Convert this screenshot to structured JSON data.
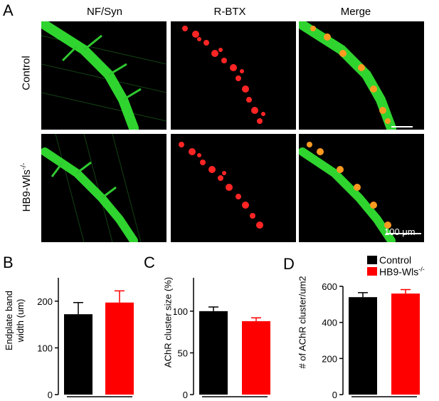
{
  "panels": {
    "a": "A",
    "b": "B",
    "c": "C",
    "d": "D"
  },
  "columns": [
    "NF/Syn",
    "R-BTX",
    "Merge"
  ],
  "rows": [
    "Control",
    "HB9-Wls"
  ],
  "row_superscript": "-/-",
  "scalebar": "100 μm",
  "legend": {
    "control": "Control",
    "hb9": "HB9-Wls",
    "hb9_sup": "-/-"
  },
  "colors": {
    "control": "#000000",
    "hb9": "#ff0000",
    "green": "#22c022",
    "red": "#ff2020"
  },
  "chart_data": [
    {
      "type": "bar",
      "panel": "B",
      "ylabel_line1": "Endplate band",
      "ylabel_line2": "width (um)",
      "categories": [
        "Control",
        "HB9-Wls-/-"
      ],
      "values": [
        172,
        197
      ],
      "errors": [
        25,
        25
      ],
      "ylim": [
        0,
        250
      ],
      "yticks": [
        "0",
        "100",
        "200"
      ],
      "ytick_values": [
        0,
        100,
        200
      ]
    },
    {
      "type": "bar",
      "panel": "C",
      "ylabel": "AChR cluster size (%)",
      "categories": [
        "Control",
        "HB9-Wls-/-"
      ],
      "values": [
        100,
        88
      ],
      "errors": [
        5,
        4
      ],
      "ylim": [
        0,
        140
      ],
      "yticks": [
        "0",
        "50",
        "100"
      ],
      "ytick_values": [
        0,
        50,
        100
      ]
    },
    {
      "type": "bar",
      "panel": "D",
      "ylabel": "# of AChR cluster/um2",
      "categories": [
        "Control",
        "HB9-Wls-/-"
      ],
      "values": [
        540,
        560
      ],
      "errors": [
        25,
        22
      ],
      "ylim": [
        0,
        600
      ],
      "yticks": [
        "0",
        "200",
        "400",
        "600"
      ],
      "ytick_values": [
        0,
        200,
        400,
        600
      ]
    }
  ]
}
